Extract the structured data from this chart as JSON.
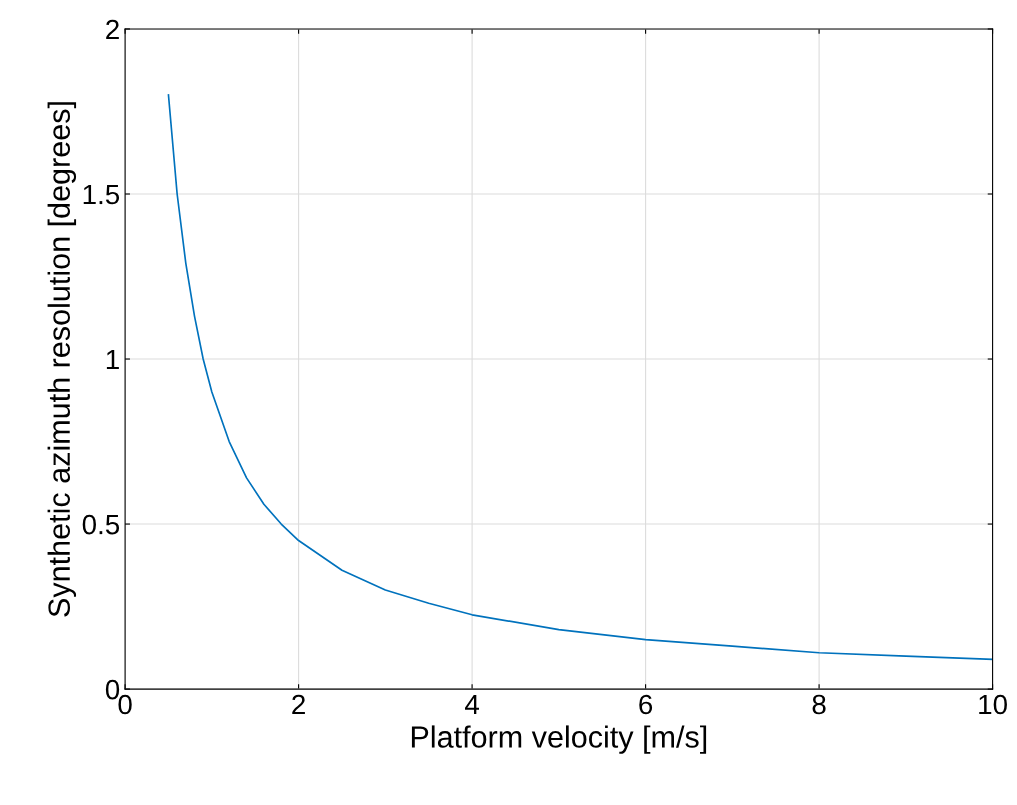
{
  "chart_data": {
    "type": "line",
    "xlabel": "Platform velocity [m/s]",
    "ylabel": "Synthetic azimuth resolution [degrees]",
    "x": [
      0.5,
      0.6,
      0.7,
      0.8,
      0.9,
      1.0,
      1.2,
      1.4,
      1.6,
      1.8,
      2.0,
      2.5,
      3.0,
      3.5,
      4.0,
      5.0,
      6.0,
      7.0,
      8.0,
      9.0,
      10.0
    ],
    "series": [
      {
        "color": "#0072bd",
        "values": [
          1.8,
          1.5,
          1.29,
          1.13,
          1.0,
          0.9,
          0.75,
          0.64,
          0.56,
          0.5,
          0.45,
          0.36,
          0.3,
          0.26,
          0.225,
          0.18,
          0.15,
          0.13,
          0.11,
          0.1,
          0.09
        ]
      }
    ],
    "xlim": [
      0,
      10
    ],
    "xticks": [
      0,
      2,
      4,
      6,
      8,
      10
    ],
    "ylim": [
      0,
      2
    ],
    "yticks": [
      0,
      0.5,
      1,
      1.5,
      2
    ],
    "grid": true,
    "legend": false,
    "marker": "none",
    "line_style": "solid"
  }
}
